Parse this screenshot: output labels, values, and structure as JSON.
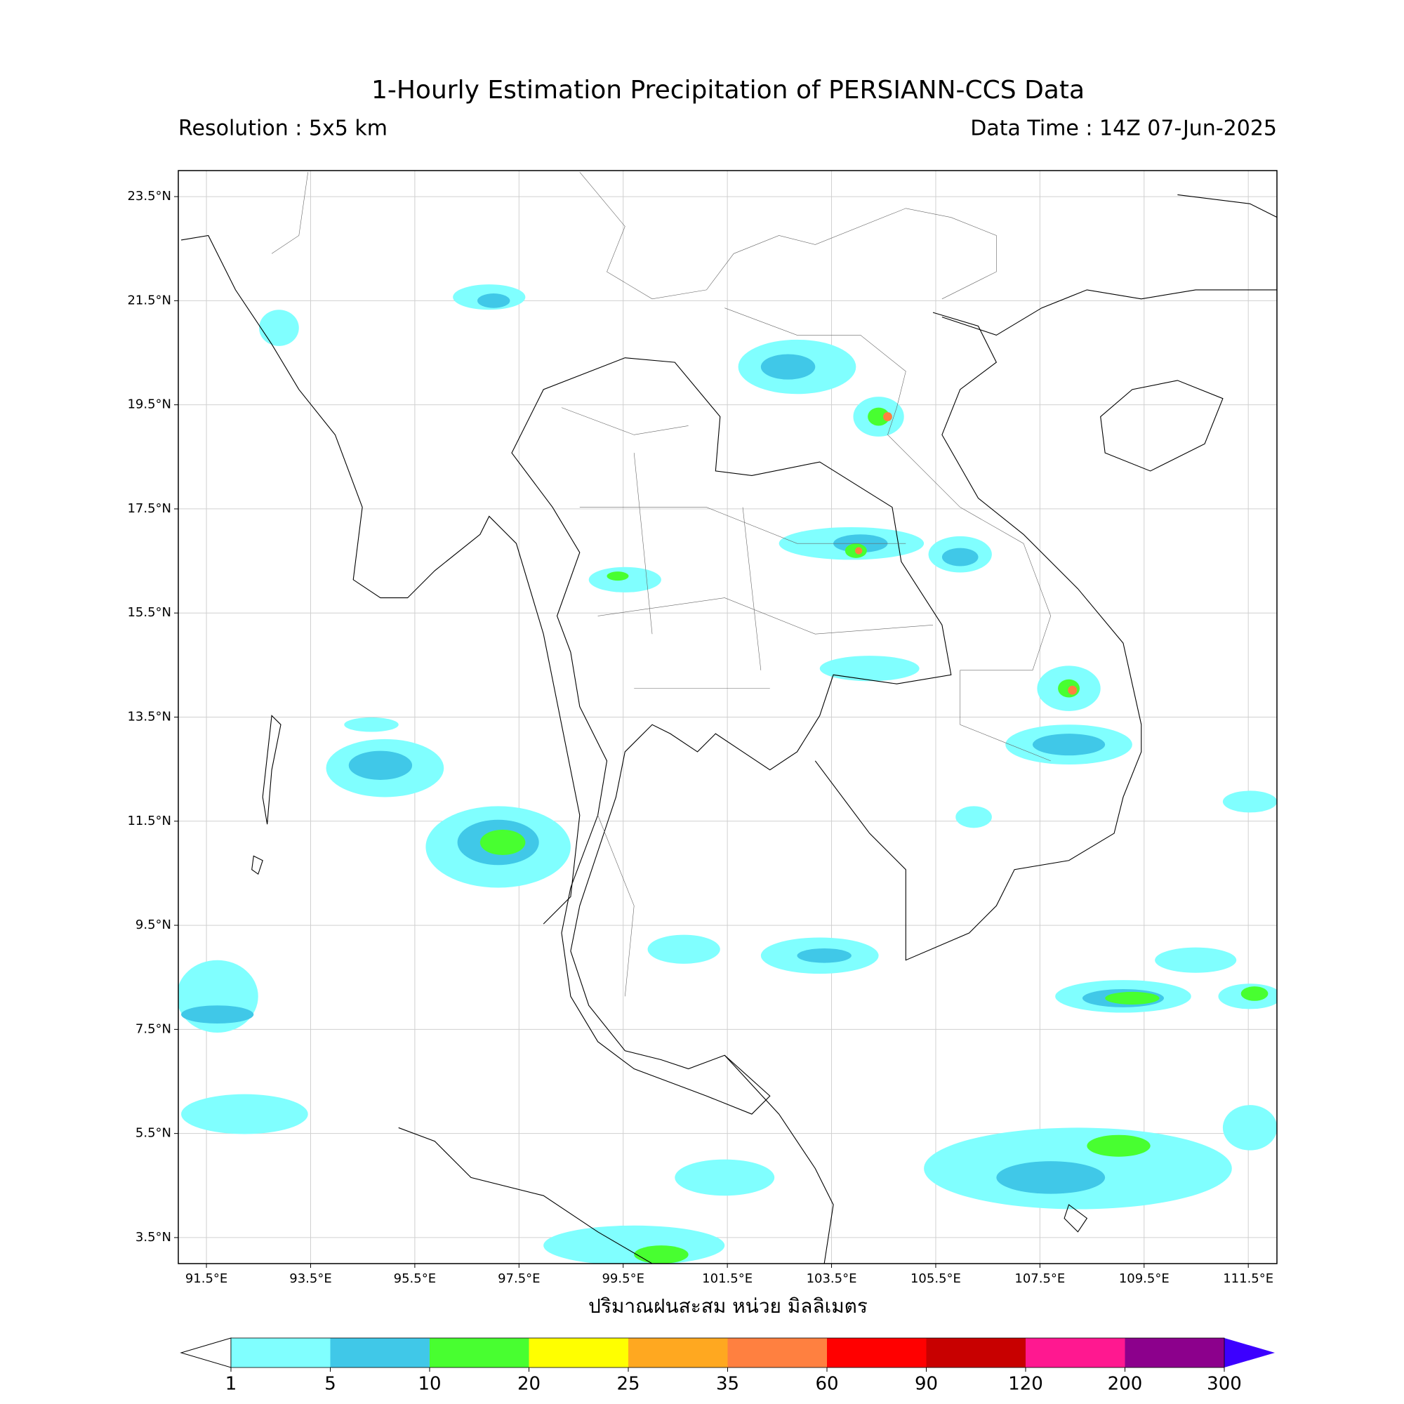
{
  "header": {
    "title": "1-Hourly Estimation Precipitation of PERSIANN-CCS Data",
    "resolution": "Resolution : 5x5 km",
    "data_time": "Data Time : 14Z 07-Jun-2025"
  },
  "map": {
    "xlim": [
      90.96,
      112.05
    ],
    "ylim": [
      3.0,
      24.0
    ],
    "xticks": [
      {
        "value": 91.5,
        "label": "91.5°E"
      },
      {
        "value": 93.5,
        "label": "93.5°E"
      },
      {
        "value": 95.5,
        "label": "95.5°E"
      },
      {
        "value": 97.5,
        "label": "97.5°E"
      },
      {
        "value": 99.5,
        "label": "99.5°E"
      },
      {
        "value": 101.5,
        "label": "101.5°E"
      },
      {
        "value": 103.5,
        "label": "103.5°E"
      },
      {
        "value": 105.5,
        "label": "105.5°E"
      },
      {
        "value": 107.5,
        "label": "107.5°E"
      },
      {
        "value": 109.5,
        "label": "109.5°E"
      },
      {
        "value": 111.5,
        "label": "111.5°E"
      }
    ],
    "yticks": [
      {
        "value": 23.5,
        "label": "23.5°N"
      },
      {
        "value": 21.5,
        "label": "21.5°N"
      },
      {
        "value": 19.5,
        "label": "19.5°N"
      },
      {
        "value": 17.5,
        "label": "17.5°N"
      },
      {
        "value": 15.5,
        "label": "15.5°N"
      },
      {
        "value": 13.5,
        "label": "13.5°N"
      },
      {
        "value": 11.5,
        "label": "11.5°N"
      },
      {
        "value": 9.5,
        "label": "9.5°N"
      },
      {
        "value": 7.5,
        "label": "7.5°N"
      },
      {
        "value": 5.5,
        "label": "5.5°N"
      },
      {
        "value": 3.5,
        "label": "3.5°N"
      }
    ],
    "grid": true,
    "xlabel": "ปริมาณฝนสะสม หน่วย มิลลิเมตร"
  },
  "colorbar": {
    "labels": [
      1,
      5,
      10,
      20,
      25,
      35,
      60,
      90,
      120,
      200,
      300
    ],
    "colors": [
      "#80ffff",
      "#40c8e8",
      "#48ff30",
      "#ffff00",
      "#ffa820",
      "#ff8040",
      "#ff0000",
      "#c80000",
      "#ff1890",
      "#8c008c"
    ],
    "under_color": "#ffffff",
    "over_color": "#3c00ff"
  }
}
